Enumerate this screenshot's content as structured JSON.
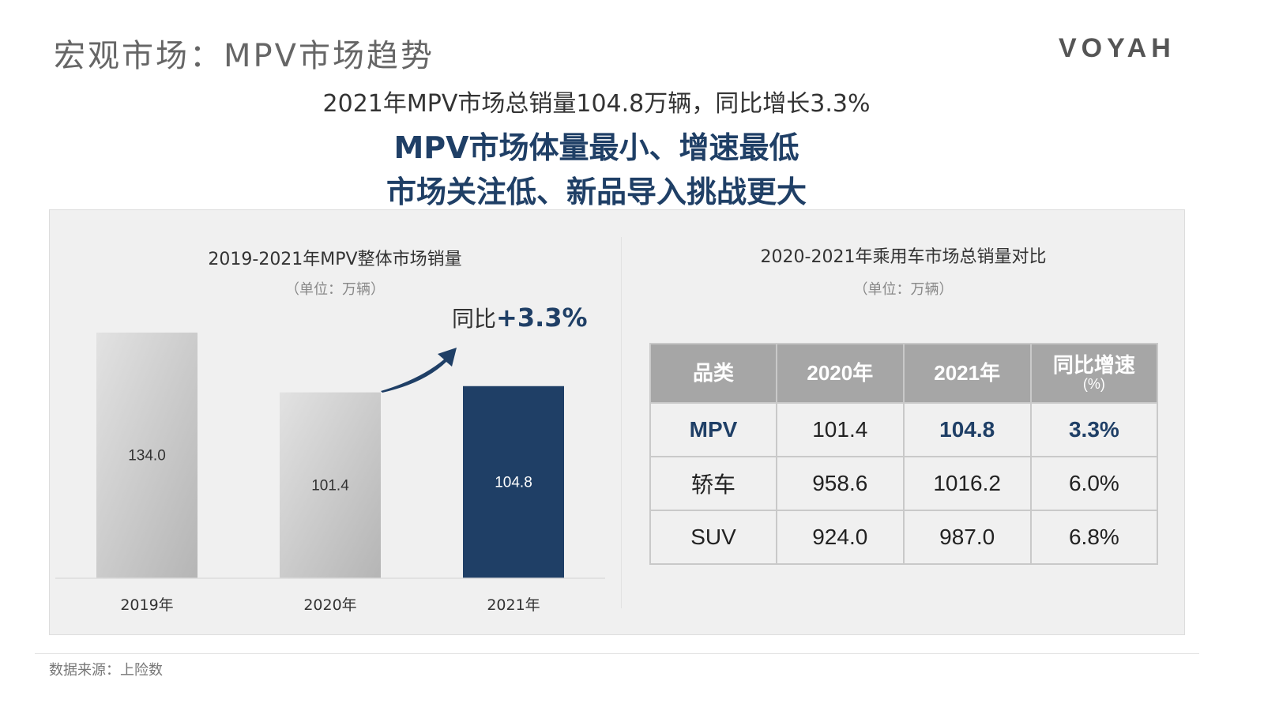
{
  "header": {
    "title": "宏观市场：MPV市场趋势",
    "logo": "VOYAH"
  },
  "headline": {
    "line1": "2021年MPV市场总销量104.8万辆，同比增长3.3%",
    "line2": "MPV市场体量最小、增速最低",
    "line3": "市场关注低、新品导入挑战更大"
  },
  "colors": {
    "accent": "#1f3f66",
    "bar_gray": "#c8c8c8",
    "panel_bg": "#f0f0f0",
    "table_header": "#a6a6a6"
  },
  "chart_data": {
    "type": "bar",
    "title": "2019-2021年MPV整体市场销量",
    "unit": "（单位：万辆）",
    "categories": [
      "2019年",
      "2020年",
      "2021年"
    ],
    "values": [
      134.0,
      101.4,
      104.8
    ],
    "value_labels": [
      "134.0",
      "101.4",
      "104.8"
    ],
    "highlight_index": 2,
    "annotation": {
      "prefix": "同比",
      "value": "+3.3%"
    },
    "grid": false,
    "ylim": [
      0,
      134.0
    ]
  },
  "table": {
    "title": "2020-2021年乘用车市场总销量对比",
    "unit": "（单位：万辆）",
    "headers": [
      "品类",
      "2020年",
      "2021年",
      "同比增速"
    ],
    "header_suffix": "(%)",
    "rows": [
      [
        "MPV",
        "101.4",
        "104.8",
        "3.3%"
      ],
      [
        "轿车",
        "958.6",
        "1016.2",
        "6.0%"
      ],
      [
        "SUV",
        "924.0",
        "987.0",
        "6.8%"
      ]
    ]
  },
  "footer": {
    "source": "数据来源：上险数"
  }
}
